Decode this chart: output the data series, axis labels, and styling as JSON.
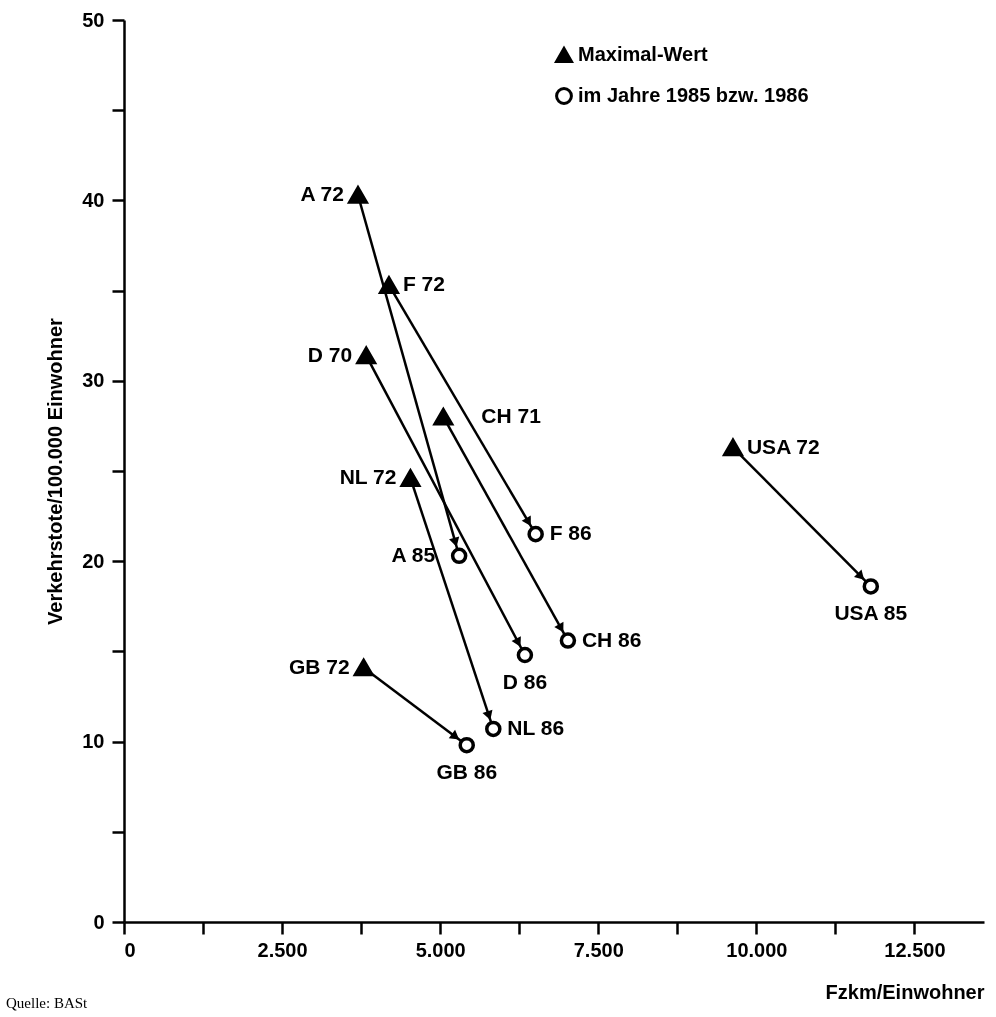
{
  "chart_data": {
    "type": "scatter",
    "xlabel": "Fzkm/Einwohner",
    "ylabel": "Verkehrstote/100.000 Einwohner",
    "xlim": [
      0,
      13600
    ],
    "ylim": [
      0,
      50
    ],
    "xticks": [
      0,
      {
        "value": 1250,
        "label": null
      },
      {
        "value": 2500,
        "label": "2.500"
      },
      {
        "value": 3750,
        "label": null
      },
      {
        "value": 5000,
        "label": "5.000"
      },
      {
        "value": 6250,
        "label": null
      },
      {
        "value": 7500,
        "label": "7.500"
      },
      {
        "value": 8750,
        "label": null
      },
      {
        "value": 10000,
        "label": "10.000"
      },
      {
        "value": 11250,
        "label": null
      },
      {
        "value": 12500,
        "label": "12.500"
      }
    ],
    "yticks": [
      0,
      {
        "value": 5,
        "label": null
      },
      10,
      {
        "value": 15,
        "label": null
      },
      20,
      {
        "value": 25,
        "label": null
      },
      30,
      {
        "value": 35,
        "label": null
      },
      40,
      {
        "value": 45,
        "label": null
      },
      50
    ],
    "legend": "top right",
    "grid": false,
    "annotations": [
      "Quelle: BASt"
    ],
    "series": [
      {
        "type": "line",
        "color": "#000000",
        "x": [
          3700,
          5300
        ],
        "values": [
          40.3,
          20.3
        ]
      },
      {
        "type": "line",
        "color": "#000000",
        "x": [
          4190,
          6510
        ],
        "values": [
          35.3,
          21.5
        ]
      },
      {
        "type": "line",
        "color": "#000000",
        "x": [
          3830,
          6340
        ],
        "values": [
          31.4,
          14.8
        ]
      },
      {
        "type": "line",
        "color": "#000000",
        "x": [
          5050,
          7020
        ],
        "values": [
          28.0,
          15.6
        ]
      },
      {
        "type": "line",
        "color": "#000000",
        "x": [
          4530,
          5840
        ],
        "values": [
          24.6,
          10.7
        ]
      },
      {
        "type": "line",
        "color": "#000000",
        "x": [
          3790,
          5420
        ],
        "values": [
          14.1,
          9.8
        ]
      },
      {
        "type": "line",
        "color": "#000000",
        "x": [
          9630,
          11810
        ],
        "values": [
          26.3,
          18.6
        ]
      },
      {
        "name": "Maximal-Wert",
        "marker": "triangle",
        "color": "#000000",
        "x": [
          3700,
          4190,
          3830,
          5050,
          4530,
          3790,
          9630
        ],
        "values": [
          40.3,
          35.3,
          31.4,
          28.0,
          24.6,
          14.1,
          26.3
        ],
        "value_labels": [
          "A 72",
          "F 72",
          "D 70",
          "CH 71",
          "NL 72",
          "GB 72",
          "USA 72"
        ]
      },
      {
        "name": "im Jahre 1985 bzw. 1986",
        "marker": "circle",
        "color": "#000000",
        "x": [
          5300,
          6510,
          7020,
          6340,
          5840,
          5420,
          11810
        ],
        "values": [
          20.3,
          21.5,
          15.6,
          14.8,
          10.7,
          9.8,
          18.6
        ],
        "value_labels": [
          "A 85",
          "F 86",
          "CH 86",
          "D 86",
          "NL 86",
          "GB 86",
          "USA 85"
        ]
      }
    ]
  }
}
